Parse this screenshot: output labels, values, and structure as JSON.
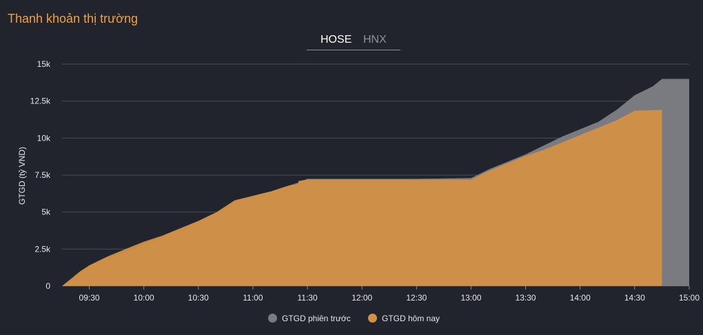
{
  "page": {
    "title": "Thanh khoản thị trường"
  },
  "tabs": [
    {
      "label": "HOSE",
      "active": true
    },
    {
      "label": "HNX",
      "active": false
    }
  ],
  "colors": {
    "previous": "#7a7b80",
    "today": "#d39145",
    "accent": "#f0a040"
  },
  "chart_data": {
    "type": "area",
    "title": "",
    "xlabel": "",
    "ylabel": "GTGD (tỷ VND)",
    "x_ticks": [
      "09:30",
      "10:00",
      "10:30",
      "11:00",
      "11:30",
      "12:00",
      "12:30",
      "13:00",
      "13:30",
      "14:00",
      "14:30",
      "15:00"
    ],
    "y_ticks": [
      "0",
      "2.5k",
      "5k",
      "7.5k",
      "10k",
      "12.5k",
      "15k"
    ],
    "ylim": [
      0,
      15000
    ],
    "xlim": [
      "09:15",
      "15:00"
    ],
    "grid": true,
    "legend_position": "bottom-center",
    "series": [
      {
        "name": "GTGD phiên trước",
        "color": "#7a7b80",
        "points": [
          [
            "09:15",
            0
          ],
          [
            "09:20",
            400
          ],
          [
            "09:25",
            900
          ],
          [
            "09:30",
            1350
          ],
          [
            "09:40",
            1900
          ],
          [
            "09:50",
            2300
          ],
          [
            "10:00",
            2800
          ],
          [
            "10:10",
            3300
          ],
          [
            "10:20",
            3800
          ],
          [
            "10:30",
            4400
          ],
          [
            "10:40",
            4900
          ],
          [
            "10:50",
            5700
          ],
          [
            "11:00",
            6100
          ],
          [
            "11:10",
            6400
          ],
          [
            "11:20",
            6800
          ],
          [
            "11:25",
            7000
          ],
          [
            "11:30",
            7250
          ],
          [
            "12:00",
            7250
          ],
          [
            "12:30",
            7250
          ],
          [
            "13:00",
            7300
          ],
          [
            "13:10",
            7900
          ],
          [
            "13:20",
            8400
          ],
          [
            "13:30",
            8900
          ],
          [
            "13:40",
            9500
          ],
          [
            "13:50",
            10100
          ],
          [
            "14:00",
            10600
          ],
          [
            "14:10",
            11100
          ],
          [
            "14:20",
            11900
          ],
          [
            "14:30",
            12900
          ],
          [
            "14:40",
            13500
          ],
          [
            "14:45",
            14000
          ],
          [
            "15:00",
            14000
          ]
        ]
      },
      {
        "name": "GTGD hôm nay",
        "color": "#d39145",
        "points": [
          [
            "09:15",
            0
          ],
          [
            "09:20",
            500
          ],
          [
            "09:25",
            1000
          ],
          [
            "09:30",
            1400
          ],
          [
            "09:40",
            2000
          ],
          [
            "09:50",
            2500
          ],
          [
            "10:00",
            3000
          ],
          [
            "10:10",
            3400
          ],
          [
            "10:20",
            3900
          ],
          [
            "10:30",
            4400
          ],
          [
            "10:40",
            5000
          ],
          [
            "10:50",
            5800
          ],
          [
            "11:00",
            6100
          ],
          [
            "11:10",
            6400
          ],
          [
            "11:20",
            6800
          ],
          [
            "11:25",
            6900
          ],
          [
            "11:25",
            7100
          ],
          [
            "11:30",
            7200
          ],
          [
            "12:00",
            7200
          ],
          [
            "12:30",
            7200
          ],
          [
            "13:00",
            7200
          ],
          [
            "13:10",
            7800
          ],
          [
            "13:20",
            8300
          ],
          [
            "13:30",
            8800
          ],
          [
            "13:40",
            9200
          ],
          [
            "13:50",
            9700
          ],
          [
            "14:00",
            10200
          ],
          [
            "14:10",
            10700
          ],
          [
            "14:20",
            11200
          ],
          [
            "14:30",
            11850
          ],
          [
            "14:45",
            11900
          ],
          [
            "14:45",
            12600
          ]
        ]
      }
    ]
  }
}
